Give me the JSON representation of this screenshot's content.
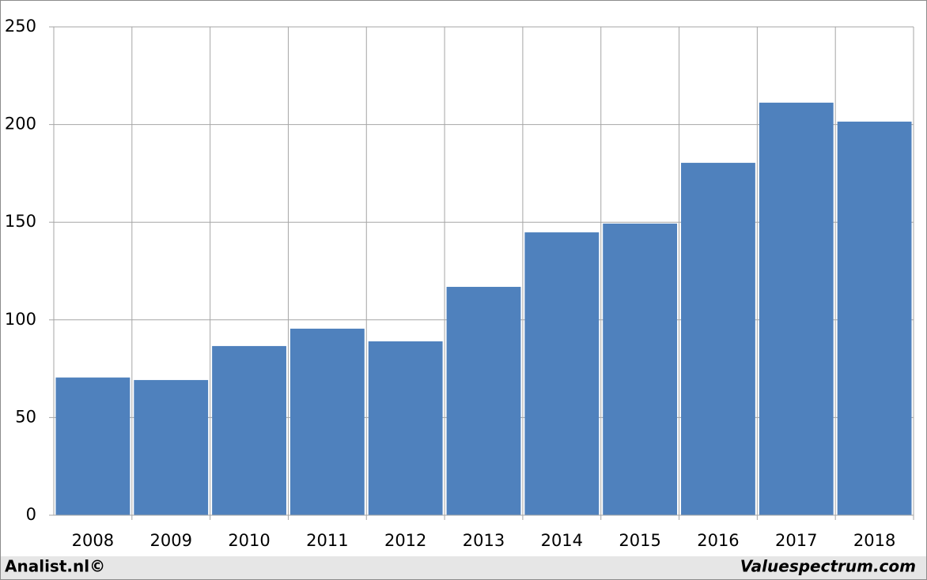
{
  "chart_data": {
    "type": "bar",
    "categories": [
      "2008",
      "2009",
      "2010",
      "2011",
      "2012",
      "2013",
      "2014",
      "2015",
      "2016",
      "2017",
      "2018"
    ],
    "values": [
      70.5,
      69.2,
      86.6,
      95.5,
      89,
      116.9,
      144.8,
      149.3,
      180.4,
      211.2,
      201.5
    ],
    "color": "#4f81bd",
    "ylim": [
      0,
      250
    ],
    "yticks": [
      0,
      50,
      100,
      150,
      200,
      250
    ],
    "grid": true,
    "annotations": [
      "Analist.nl©",
      "Valuespectrum.com"
    ]
  }
}
